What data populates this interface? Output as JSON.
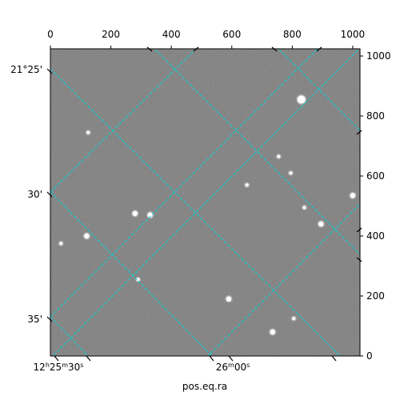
{
  "chart_data": {
    "type": "scatter",
    "title": "",
    "xlabel": "pos.eq.ra",
    "ylabel": "",
    "pixel_axes": {
      "xlim": [
        0,
        1024
      ],
      "ylim": [
        0,
        1024
      ],
      "x_ticks": [
        0,
        200,
        400,
        600,
        800,
        1000
      ],
      "y_ticks": [
        0,
        200,
        400,
        600,
        800,
        1000
      ]
    },
    "world_axes": {
      "ra_tick_labels": [
        "12h25m30s",
        "26m00s"
      ],
      "dec_tick_labels": [
        "21°25'",
        "30'",
        "35'"
      ]
    },
    "grid": true,
    "grid_color": "#00d5d5",
    "image_style": "grayscale star field",
    "stars": [
      {
        "x": 830,
        "y": 855,
        "mag": "bright"
      },
      {
        "x": 125,
        "y": 745,
        "mag": "faint"
      },
      {
        "x": 755,
        "y": 665,
        "mag": "faint"
      },
      {
        "x": 795,
        "y": 610,
        "mag": "faint"
      },
      {
        "x": 650,
        "y": 570,
        "mag": "faint"
      },
      {
        "x": 1000,
        "y": 535,
        "mag": "medium"
      },
      {
        "x": 840,
        "y": 495,
        "mag": "faint"
      },
      {
        "x": 280,
        "y": 475,
        "mag": "medium"
      },
      {
        "x": 330,
        "y": 470,
        "mag": "medium"
      },
      {
        "x": 895,
        "y": 440,
        "mag": "medium"
      },
      {
        "x": 120,
        "y": 400,
        "mag": "medium"
      },
      {
        "x": 35,
        "y": 375,
        "mag": "faint"
      },
      {
        "x": 290,
        "y": 255,
        "mag": "faint"
      },
      {
        "x": 590,
        "y": 190,
        "mag": "medium"
      },
      {
        "x": 805,
        "y": 125,
        "mag": "faint"
      },
      {
        "x": 735,
        "y": 80,
        "mag": "medium"
      }
    ]
  }
}
